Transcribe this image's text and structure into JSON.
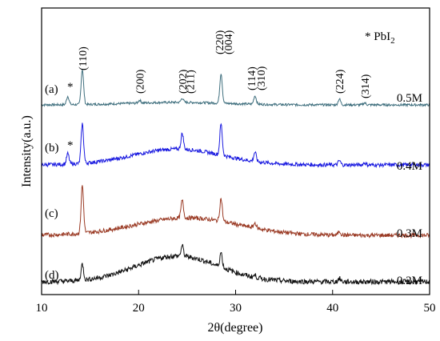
{
  "chart_data": {
    "type": "line",
    "xlabel": "2θ(degree)",
    "ylabel": "Intensity(a.u.)",
    "xlim": [
      10,
      50
    ],
    "xticks": [
      "10",
      "20",
      "30",
      "40",
      "50"
    ],
    "note": {
      "prefix": "* PbI",
      "sub": "2"
    },
    "peak_labels": [
      {
        "label": "(110)",
        "x": 14.2
      },
      {
        "label": "(200)",
        "x": 20.1
      },
      {
        "label": "(202)",
        "x": 24.5
      },
      {
        "label": "(211)",
        "x": 25.3
      },
      {
        "label": "(220)",
        "x": 28.3
      },
      {
        "label": "(004)",
        "x": 29.2
      },
      {
        "label": "(114)",
        "x": 31.6
      },
      {
        "label": "(310)",
        "x": 32.6
      },
      {
        "label": "(224)",
        "x": 40.7
      },
      {
        "label": "(314)",
        "x": 43.3
      }
    ],
    "series": [
      {
        "tag": "(a)",
        "concentration": "0.5M",
        "color": "#3e6e7d",
        "star": "*",
        "baseline": 0.0,
        "hump": {
          "center": 24,
          "width": 7,
          "height": 0.06
        },
        "noise": 0.028,
        "peaks": [
          {
            "x": 12.7,
            "h": 0.2
          },
          {
            "x": 14.2,
            "h": 0.85
          },
          {
            "x": 20.1,
            "h": 0.07
          },
          {
            "x": 24.5,
            "h": 0.1
          },
          {
            "x": 28.5,
            "h": 0.72
          },
          {
            "x": 32.0,
            "h": 0.2
          },
          {
            "x": 40.7,
            "h": 0.14
          },
          {
            "x": 43.3,
            "h": 0.05
          }
        ]
      },
      {
        "tag": "(b)",
        "concentration": "0.4M",
        "color": "#1a1ae0",
        "star": "*",
        "baseline": 0.0,
        "hump": {
          "center": 24,
          "width": 6.5,
          "height": 0.38
        },
        "noise": 0.045,
        "peaks": [
          {
            "x": 12.7,
            "h": 0.25
          },
          {
            "x": 14.2,
            "h": 0.95
          },
          {
            "x": 24.5,
            "h": 0.38
          },
          {
            "x": 28.5,
            "h": 0.75
          },
          {
            "x": 32.0,
            "h": 0.22
          },
          {
            "x": 40.7,
            "h": 0.1
          },
          {
            "x": 43.3,
            "h": 0.05
          }
        ]
      },
      {
        "tag": "(c)",
        "concentration": "0.3M",
        "color": "#9a3a24",
        "star": "",
        "baseline": 0.0,
        "hump": {
          "center": 25,
          "width": 7.5,
          "height": 0.42
        },
        "noise": 0.05,
        "peaks": [
          {
            "x": 14.2,
            "h": 1.15
          },
          {
            "x": 24.5,
            "h": 0.42
          },
          {
            "x": 28.5,
            "h": 0.55
          },
          {
            "x": 32.0,
            "h": 0.12
          },
          {
            "x": 40.7,
            "h": 0.1
          }
        ]
      },
      {
        "tag": "(d)",
        "concentration": "0.2M",
        "color": "#111111",
        "star": "",
        "baseline": 0.0,
        "hump": {
          "center": 24,
          "width": 6,
          "height": 0.62
        },
        "noise": 0.06,
        "peaks": [
          {
            "x": 14.2,
            "h": 0.38
          },
          {
            "x": 24.5,
            "h": 0.25
          },
          {
            "x": 28.5,
            "h": 0.35
          },
          {
            "x": 32.0,
            "h": 0.05
          },
          {
            "x": 40.7,
            "h": 0.08
          }
        ]
      }
    ]
  }
}
